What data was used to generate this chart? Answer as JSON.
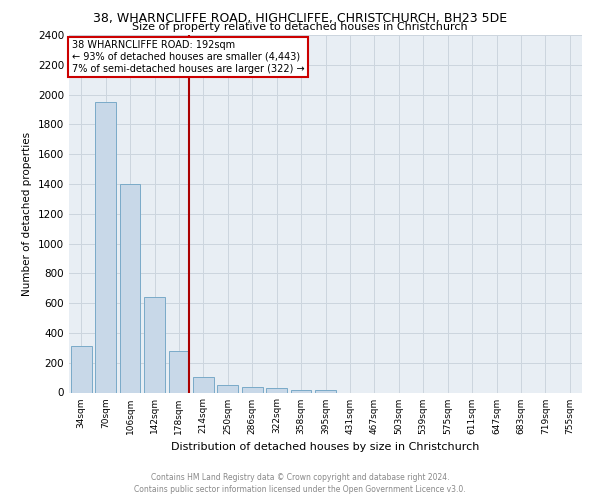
{
  "title1": "38, WHARNCLIFFE ROAD, HIGHCLIFFE, CHRISTCHURCH, BH23 5DE",
  "title2": "Size of property relative to detached houses in Christchurch",
  "xlabel": "Distribution of detached houses by size in Christchurch",
  "ylabel": "Number of detached properties",
  "categories": [
    "34sqm",
    "70sqm",
    "106sqm",
    "142sqm",
    "178sqm",
    "214sqm",
    "250sqm",
    "286sqm",
    "322sqm",
    "358sqm",
    "395sqm",
    "431sqm",
    "467sqm",
    "503sqm",
    "539sqm",
    "575sqm",
    "611sqm",
    "647sqm",
    "683sqm",
    "719sqm",
    "755sqm"
  ],
  "values": [
    315,
    1950,
    1400,
    640,
    280,
    105,
    50,
    40,
    30,
    20,
    20,
    0,
    0,
    0,
    0,
    0,
    0,
    0,
    0,
    0,
    0
  ],
  "bar_color": "#c8d8e8",
  "bar_edge_color": "#7aaac8",
  "property_label": "38 WHARNCLIFFE ROAD: 192sqm",
  "annotation_line1": "← 93% of detached houses are smaller (4,443)",
  "annotation_line2": "7% of semi-detached houses are larger (322) →",
  "vline_color": "#aa0000",
  "vline_x_index": 4.42,
  "annotation_box_color": "#cc0000",
  "ylim": [
    0,
    2400
  ],
  "yticks": [
    0,
    200,
    400,
    600,
    800,
    1000,
    1200,
    1400,
    1600,
    1800,
    2000,
    2200,
    2400
  ],
  "grid_color": "#ccd5de",
  "background_color": "#e8eef4",
  "footer_line1": "Contains HM Land Registry data © Crown copyright and database right 2024.",
  "footer_line2": "Contains public sector information licensed under the Open Government Licence v3.0."
}
